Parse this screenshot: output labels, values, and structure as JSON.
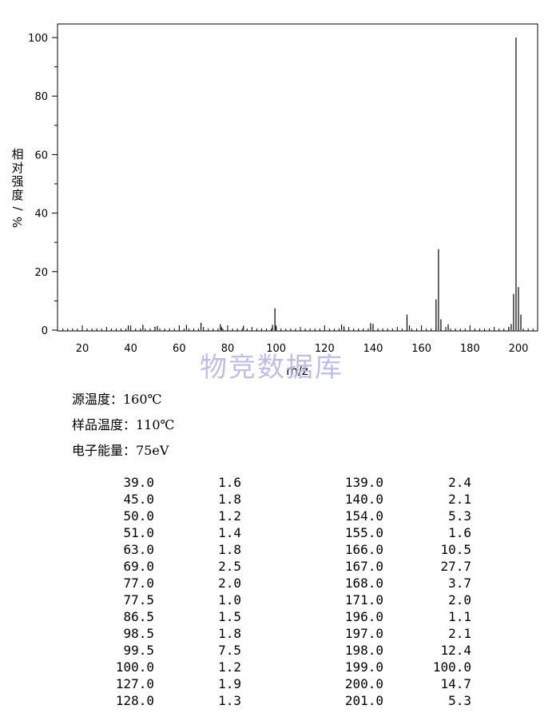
{
  "chart_data": {
    "type": "bar",
    "xlabel": "m/z",
    "ylabel": "相对强度/%",
    "xlim": [
      10,
      208
    ],
    "ylim": [
      0,
      105
    ],
    "x_ticks": [
      20,
      40,
      60,
      80,
      100,
      120,
      140,
      160,
      180,
      200
    ],
    "y_ticks": [
      0,
      20,
      40,
      60,
      80,
      100
    ],
    "grid": false,
    "peaks": [
      {
        "x": 39.0,
        "y": 1.6
      },
      {
        "x": 45.0,
        "y": 1.8
      },
      {
        "x": 50.0,
        "y": 1.2
      },
      {
        "x": 51.0,
        "y": 1.4
      },
      {
        "x": 63.0,
        "y": 1.8
      },
      {
        "x": 69.0,
        "y": 2.5
      },
      {
        "x": 77.0,
        "y": 2.0
      },
      {
        "x": 77.5,
        "y": 1.0
      },
      {
        "x": 86.5,
        "y": 1.5
      },
      {
        "x": 98.5,
        "y": 1.8
      },
      {
        "x": 99.5,
        "y": 7.5
      },
      {
        "x": 100.0,
        "y": 1.2
      },
      {
        "x": 127.0,
        "y": 1.9
      },
      {
        "x": 128.0,
        "y": 1.3
      },
      {
        "x": 139.0,
        "y": 2.4
      },
      {
        "x": 140.0,
        "y": 2.1
      },
      {
        "x": 154.0,
        "y": 5.3
      },
      {
        "x": 155.0,
        "y": 1.6
      },
      {
        "x": 166.0,
        "y": 10.5
      },
      {
        "x": 167.0,
        "y": 27.7
      },
      {
        "x": 168.0,
        "y": 3.7
      },
      {
        "x": 171.0,
        "y": 2.0
      },
      {
        "x": 196.0,
        "y": 1.1
      },
      {
        "x": 197.0,
        "y": 2.1
      },
      {
        "x": 198.0,
        "y": 12.4
      },
      {
        "x": 199.0,
        "y": 100.0
      },
      {
        "x": 200.0,
        "y": 14.7
      },
      {
        "x": 201.0,
        "y": 5.3
      }
    ]
  },
  "watermark": "物竞数据库",
  "conditions": [
    "源温度：160℃",
    "样品温度：110℃",
    "电子能量：75eV"
  ],
  "peak_table": {
    "left": [
      [
        "39.0",
        "1.6"
      ],
      [
        "45.0",
        "1.8"
      ],
      [
        "50.0",
        "1.2"
      ],
      [
        "51.0",
        "1.4"
      ],
      [
        "63.0",
        "1.8"
      ],
      [
        "69.0",
        "2.5"
      ],
      [
        "77.0",
        "2.0"
      ],
      [
        "77.5",
        "1.0"
      ],
      [
        "86.5",
        "1.5"
      ],
      [
        "98.5",
        "1.8"
      ],
      [
        "99.5",
        "7.5"
      ],
      [
        "100.0",
        "1.2"
      ],
      [
        "127.0",
        "1.9"
      ],
      [
        "128.0",
        "1.3"
      ]
    ],
    "right": [
      [
        "139.0",
        "2.4"
      ],
      [
        "140.0",
        "2.1"
      ],
      [
        "154.0",
        "5.3"
      ],
      [
        "155.0",
        "1.6"
      ],
      [
        "166.0",
        "10.5"
      ],
      [
        "167.0",
        "27.7"
      ],
      [
        "168.0",
        "3.7"
      ],
      [
        "171.0",
        "2.0"
      ],
      [
        "196.0",
        "1.1"
      ],
      [
        "197.0",
        "2.1"
      ],
      [
        "198.0",
        "12.4"
      ],
      [
        "199.0",
        "100.0"
      ],
      [
        "200.0",
        "14.7"
      ],
      [
        "201.0",
        "5.3"
      ]
    ]
  }
}
